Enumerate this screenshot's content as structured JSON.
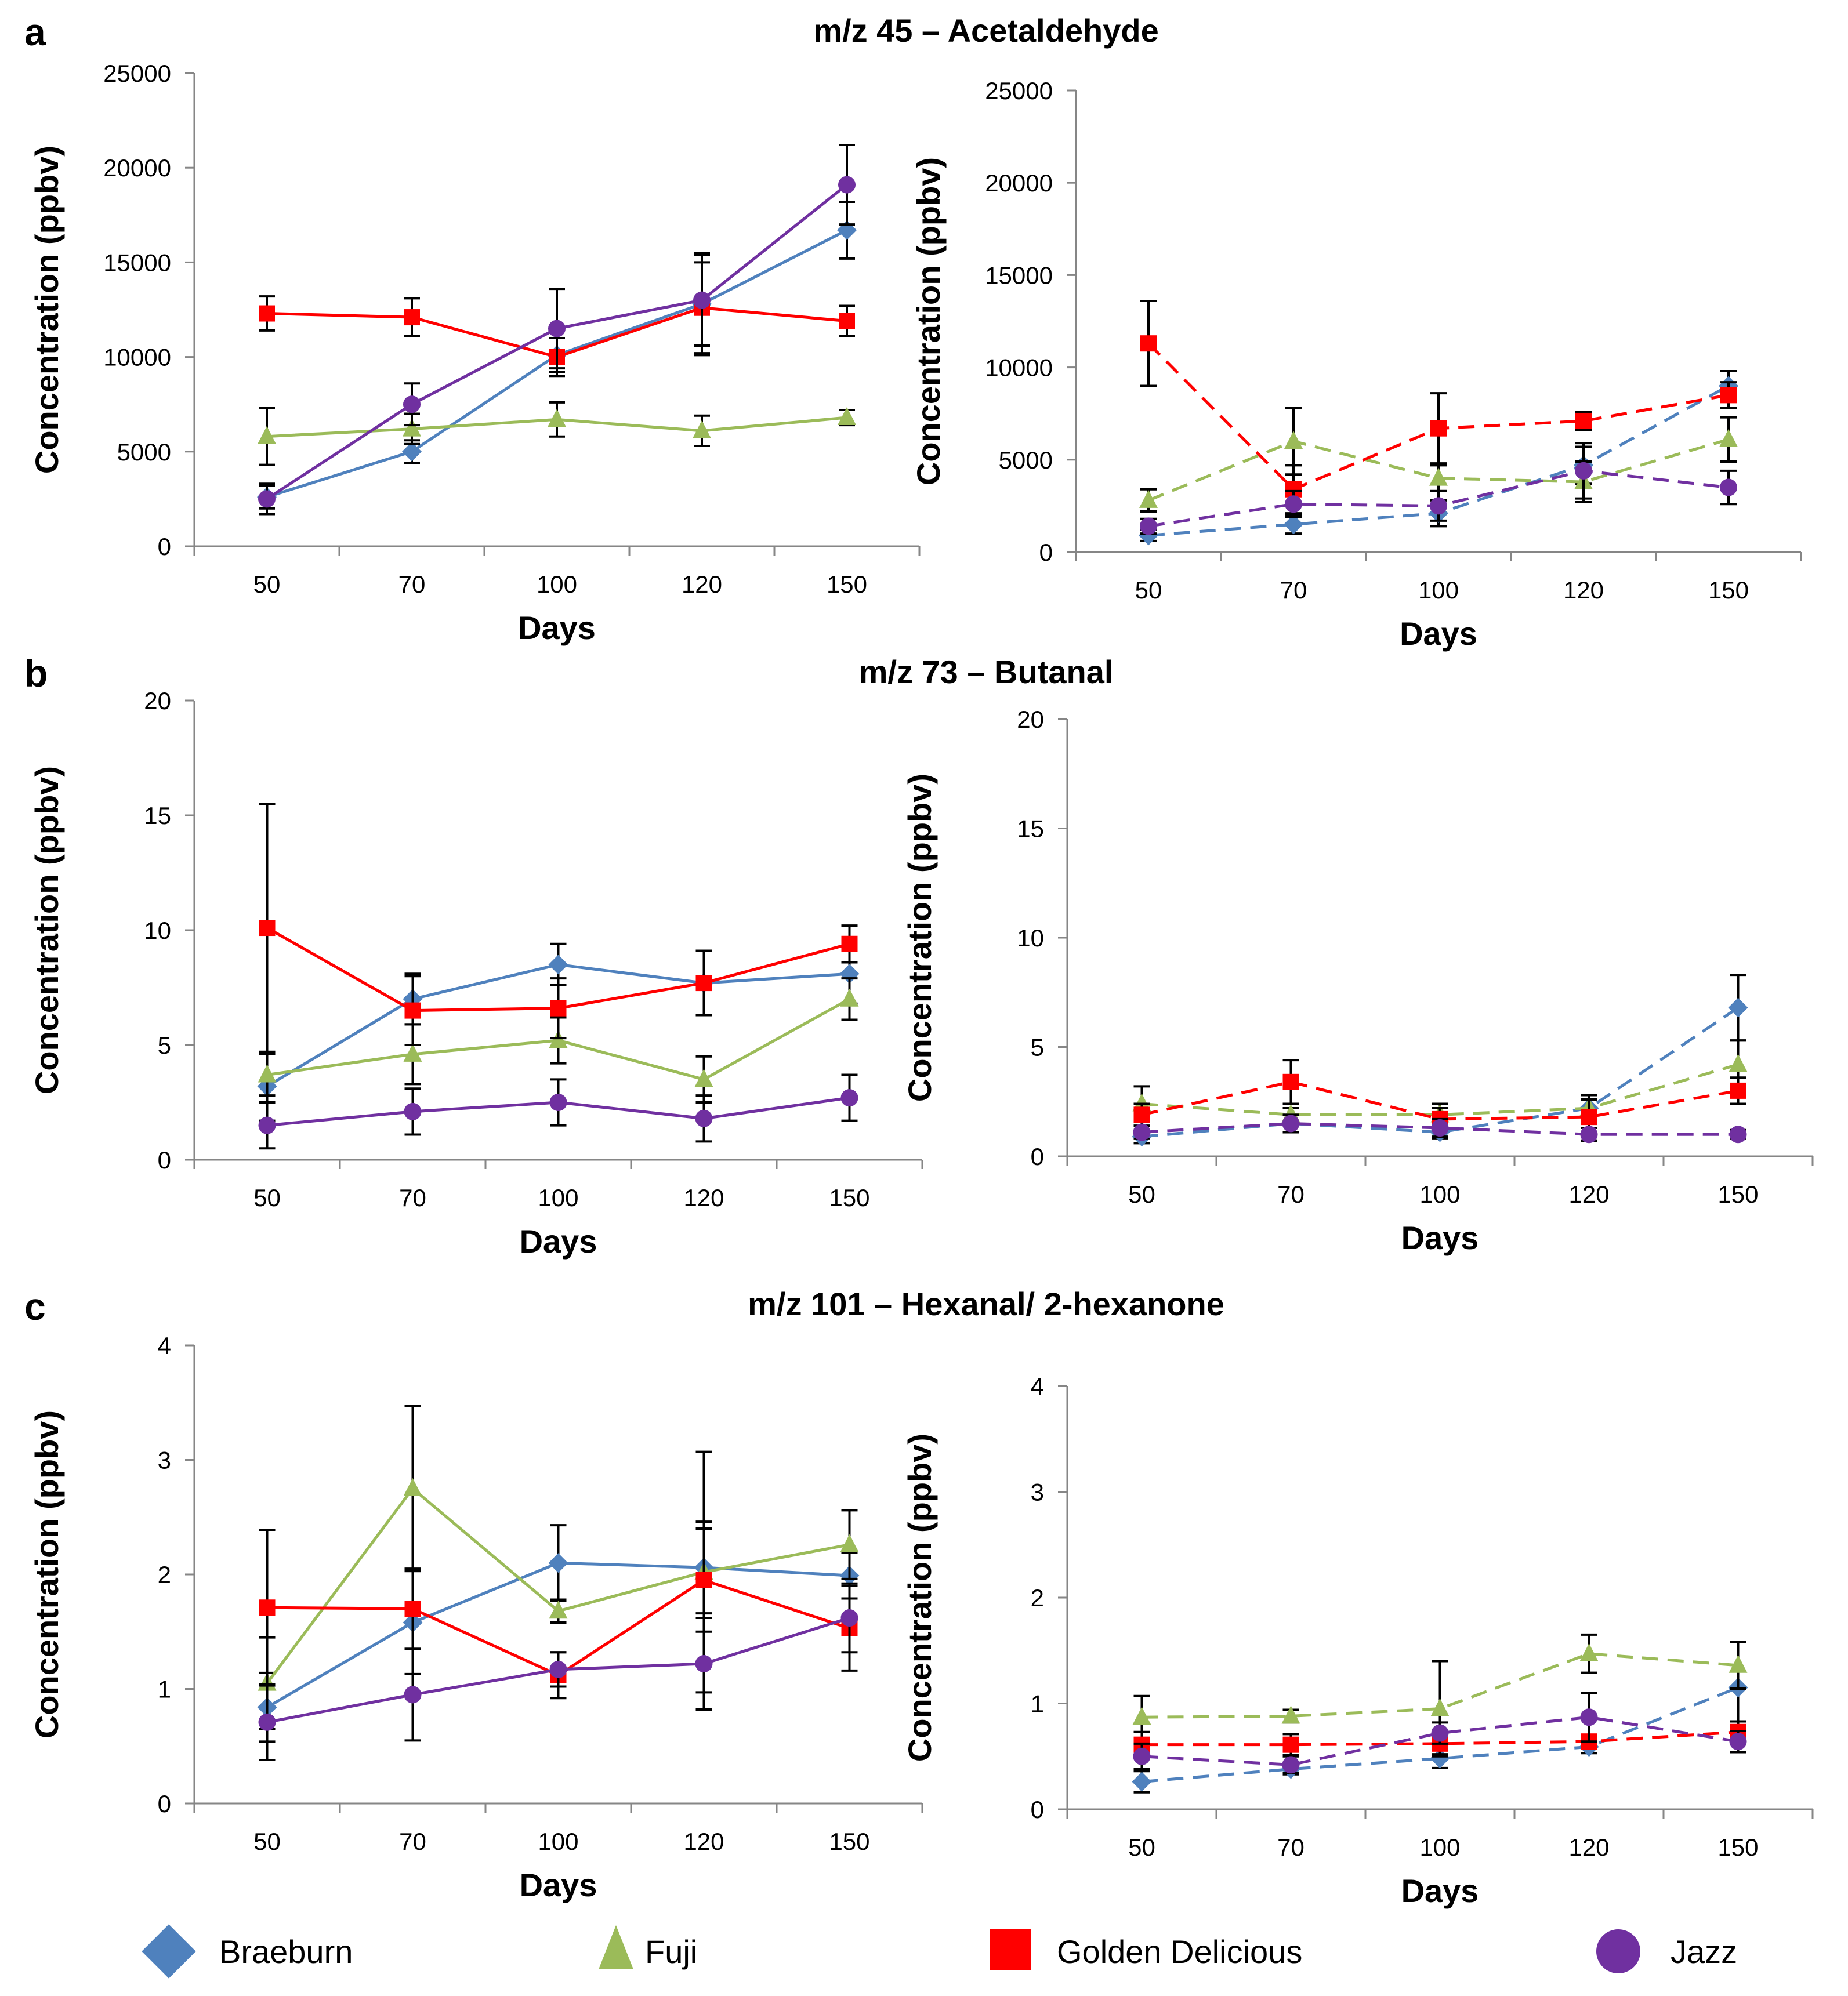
{
  "series_meta": [
    {
      "key": "braeburn",
      "name": "Braeburn",
      "color": "#4F81BD",
      "marker": "diamond"
    },
    {
      "key": "fuji",
      "name": "Fuji",
      "color": "#9BBB59",
      "marker": "triangle"
    },
    {
      "key": "golden",
      "name": "Golden Delicious",
      "color": "#FF0000",
      "marker": "square"
    },
    {
      "key": "jazz",
      "name": "Jazz",
      "color": "#7030A0",
      "marker": "circle"
    }
  ],
  "chart_data": [
    {
      "panel": "a",
      "title": "m/z  45 – Acetaldehyde",
      "side": "left",
      "line_style": "solid",
      "type": "line",
      "categories": [
        "50",
        "70",
        "100",
        "120",
        "150"
      ],
      "xlabel": "Days",
      "ylabel": "Concentration (ppbv)",
      "ylim": [
        0,
        25000
      ],
      "yticks": [
        "0",
        "5000",
        "10000",
        "15000",
        "20000",
        "25000"
      ],
      "series": [
        {
          "name": "Braeburn",
          "values": [
            2600,
            5000,
            10100,
            12800,
            16700
          ],
          "errors": [
            600,
            600,
            900,
            2700,
            1500
          ]
        },
        {
          "name": "Fuji",
          "values": [
            5800,
            6200,
            6700,
            6100,
            6800
          ],
          "errors": [
            1500,
            800,
            900,
            800,
            400
          ]
        },
        {
          "name": "Golden Delicious",
          "values": [
            12300,
            12100,
            10000,
            12600,
            11900
          ],
          "errors": [
            900,
            1000,
            1000,
            2400,
            800
          ]
        },
        {
          "name": "Jazz",
          "values": [
            2500,
            7500,
            11500,
            13000,
            19100
          ],
          "errors": [
            800,
            1100,
            2100,
            2400,
            2100
          ]
        }
      ]
    },
    {
      "panel": "a",
      "title": "",
      "side": "right",
      "line_style": "dashed",
      "type": "line",
      "categories": [
        "50",
        "70",
        "100",
        "120",
        "150"
      ],
      "xlabel": "Days",
      "ylabel": "Concentration (ppbv)",
      "ylim": [
        0,
        25000
      ],
      "yticks": [
        "0",
        "5000",
        "10000",
        "15000",
        "20000",
        "25000"
      ],
      "series": [
        {
          "name": "Braeburn",
          "values": [
            900,
            1500,
            2100,
            4700,
            9000
          ],
          "errors": [
            300,
            500,
            700,
            1000,
            800
          ]
        },
        {
          "name": "Fuji",
          "values": [
            2800,
            6000,
            4000,
            3800,
            6100
          ],
          "errors": [
            600,
            1800,
            700,
            1100,
            1200
          ]
        },
        {
          "name": "Golden Delicious",
          "values": [
            11300,
            3400,
            6700,
            7100,
            8500
          ],
          "errors": [
            2300,
            1300,
            1900,
            500,
            700
          ]
        },
        {
          "name": "Jazz",
          "values": [
            1400,
            2600,
            2500,
            4400,
            3500
          ],
          "errors": [
            400,
            700,
            800,
            1500,
            900
          ]
        }
      ]
    },
    {
      "panel": "b",
      "title": "m/z  73 – Butanal",
      "side": "left",
      "line_style": "solid",
      "type": "line",
      "categories": [
        "50",
        "70",
        "100",
        "120",
        "150"
      ],
      "xlabel": "Days",
      "ylabel": "Concentration (ppbv)",
      "ylim": [
        0,
        20
      ],
      "yticks": [
        "0",
        "5",
        "10",
        "15",
        "20"
      ],
      "series": [
        {
          "name": "Braeburn",
          "values": [
            3.2,
            7.0,
            8.5,
            7.7,
            8.1
          ],
          "errors": [
            1.5,
            1.1,
            0.9,
            1.4,
            1.3
          ]
        },
        {
          "name": "Fuji",
          "values": [
            3.7,
            4.6,
            5.2,
            3.5,
            7.0
          ],
          "errors": [
            0.9,
            1.3,
            1.0,
            1.0,
            0.9
          ]
        },
        {
          "name": "Golden Delicious",
          "values": [
            10.1,
            6.5,
            6.6,
            7.7,
            9.4
          ],
          "errors": [
            5.4,
            1.5,
            1.3,
            1.4,
            0.8
          ]
        },
        {
          "name": "Jazz",
          "values": [
            1.5,
            2.1,
            2.5,
            1.8,
            2.7
          ],
          "errors": [
            1.0,
            1.0,
            1.0,
            1.0,
            1.0
          ]
        }
      ]
    },
    {
      "panel": "b",
      "title": "",
      "side": "right",
      "line_style": "dashed",
      "type": "line",
      "categories": [
        "50",
        "70",
        "100",
        "120",
        "150"
      ],
      "xlabel": "Days",
      "ylabel": "Concentration (ppbv)",
      "ylim": [
        0,
        20
      ],
      "yticks": [
        "0",
        "5",
        "10",
        "15",
        "20"
      ],
      "series": [
        {
          "name": "Braeburn",
          "values": [
            0.9,
            1.5,
            1.1,
            2.2,
            6.8
          ],
          "errors": [
            0.3,
            0.4,
            0.3,
            0.6,
            1.5
          ]
        },
        {
          "name": "Fuji",
          "values": [
            2.4,
            1.9,
            1.9,
            2.2,
            4.2
          ],
          "errors": [
            0.8,
            0.3,
            0.5,
            0.6,
            1.1
          ]
        },
        {
          "name": "Golden Delicious",
          "values": [
            1.9,
            3.4,
            1.7,
            1.8,
            3.0
          ],
          "errors": [
            0.5,
            1.0,
            0.5,
            0.8,
            0.6
          ]
        },
        {
          "name": "Jazz",
          "values": [
            1.1,
            1.5,
            1.3,
            1.0,
            1.0
          ],
          "errors": [
            0.3,
            0.4,
            0.4,
            0.3,
            0.2
          ]
        }
      ]
    },
    {
      "panel": "c",
      "title": "m/z  101 – Hexanal/ 2-hexanone",
      "side": "left",
      "line_style": "solid",
      "type": "line",
      "categories": [
        "50",
        "70",
        "100",
        "120",
        "150"
      ],
      "xlabel": "Days",
      "ylabel": "Concentration (ppbv)",
      "ylim": [
        0,
        4
      ],
      "yticks": [
        "0",
        "1",
        "2",
        "3",
        "4"
      ],
      "series": [
        {
          "name": "Braeburn",
          "values": [
            0.84,
            1.58,
            2.1,
            2.06,
            1.99
          ],
          "errors": [
            0.3,
            0.45,
            0.33,
            0.4,
            0.2
          ]
        },
        {
          "name": "Fuji",
          "values": [
            1.05,
            2.75,
            1.68,
            2.02,
            2.26
          ],
          "errors": [
            0.4,
            0.72,
            0.1,
            1.05,
            0.3
          ]
        },
        {
          "name": "Golden Delicious",
          "values": [
            1.71,
            1.7,
            1.12,
            1.95,
            1.53
          ],
          "errors": [
            0.68,
            0.35,
            0.2,
            0.45,
            0.37
          ]
        },
        {
          "name": "Jazz",
          "values": [
            0.71,
            0.95,
            1.17,
            1.22,
            1.62
          ],
          "errors": [
            0.33,
            0.4,
            0.15,
            0.4,
            0.3
          ]
        }
      ]
    },
    {
      "panel": "c",
      "title": "",
      "side": "right",
      "line_style": "dashed",
      "type": "line",
      "categories": [
        "50",
        "70",
        "100",
        "120",
        "150"
      ],
      "xlabel": "Days",
      "ylabel": "Concentration (ppbv)",
      "ylim": [
        0,
        4
      ],
      "yticks": [
        "0",
        "1",
        "2",
        "3",
        "4"
      ],
      "series": [
        {
          "name": "Braeburn",
          "values": [
            0.26,
            0.38,
            0.48,
            0.59,
            1.15
          ],
          "errors": [
            0.1,
            0.05,
            0.09,
            0.06,
            0.43
          ]
        },
        {
          "name": "Fuji",
          "values": [
            0.87,
            0.88,
            0.95,
            1.47,
            1.36
          ],
          "errors": [
            0.2,
            0.06,
            0.45,
            0.18,
            0.22
          ]
        },
        {
          "name": "Golden Delicious",
          "values": [
            0.61,
            0.61,
            0.62,
            0.64,
            0.73
          ],
          "errors": [
            0.12,
            0.1,
            0.1,
            0.05,
            0.1
          ]
        },
        {
          "name": "Jazz",
          "values": [
            0.5,
            0.42,
            0.72,
            0.87,
            0.64
          ],
          "errors": [
            0.12,
            0.08,
            0.1,
            0.23,
            0.1
          ]
        }
      ]
    }
  ]
}
